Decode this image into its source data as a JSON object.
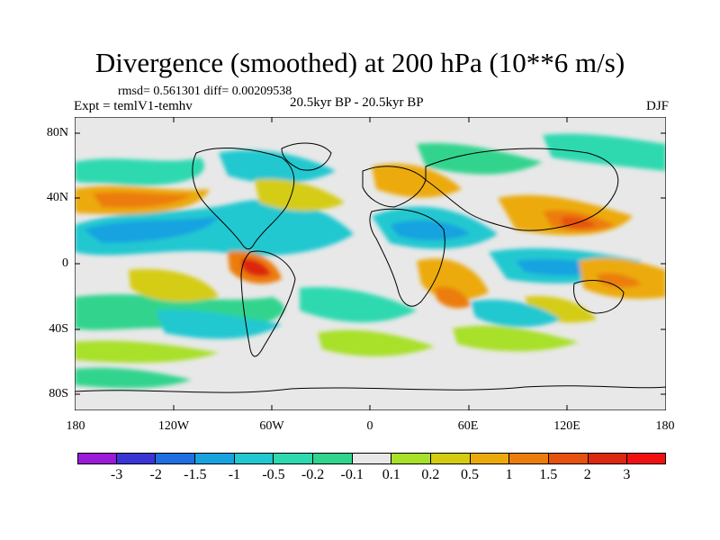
{
  "title": "Divergence (smoothed) at 200 hPa (10**6 m/s)",
  "stats": "rmsd= 0.561301 diff= 0.00209538",
  "expt": "Expt = temlV1-temhv",
  "period": "20.5kyr BP - 20.5kyr BP",
  "season": "DJF",
  "lat_labels": [
    "80N",
    "40N",
    "0",
    "40S",
    "80S"
  ],
  "lon_labels": [
    "180",
    "120W",
    "60W",
    "0",
    "60E",
    "120E",
    "180"
  ],
  "colorbar": {
    "labels": [
      "-3",
      "-2",
      "-1.5",
      "-1",
      "-0.5",
      "-0.2",
      "-0.1",
      "0.1",
      "0.2",
      "0.5",
      "1",
      "1.5",
      "2",
      "3"
    ],
    "colors": [
      "#9a1bd8",
      "#3a36d6",
      "#1f6fe0",
      "#18a3e0",
      "#22c8d0",
      "#2ed9b0",
      "#31d48d",
      "#e8e8e8",
      "#a8e02a",
      "#d5cc12",
      "#ecaa0a",
      "#ec7d0c",
      "#e6520d",
      "#dc2810",
      "#f01010"
    ]
  },
  "colors": {
    "neutral": "#e8e8e8",
    "coast": "#000000"
  }
}
